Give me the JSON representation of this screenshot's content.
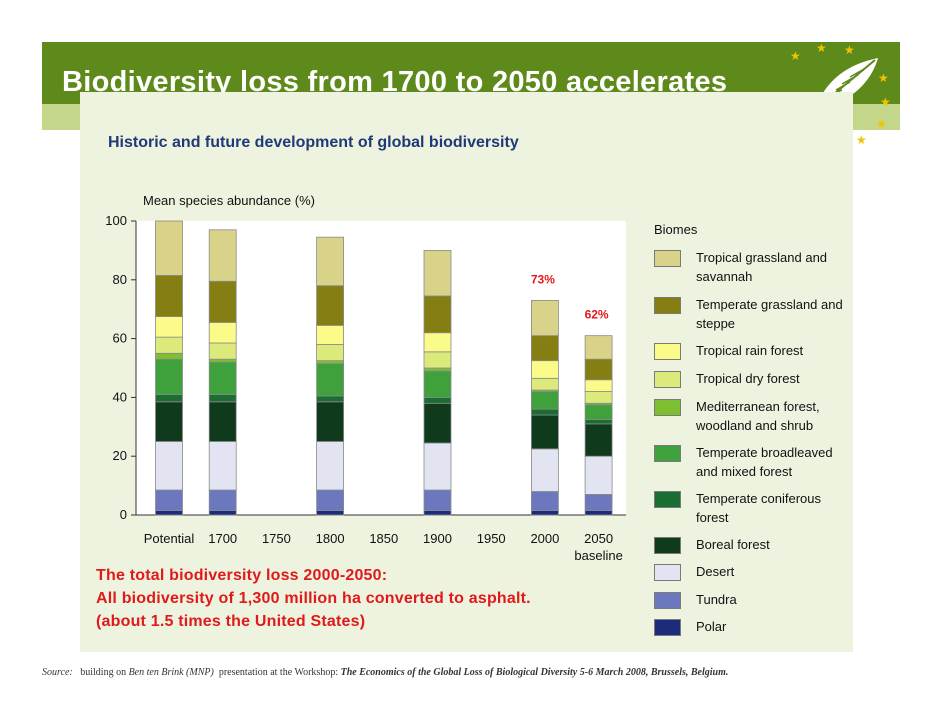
{
  "slide": {
    "title": "Biodiversity loss from 1700  to 2050 accelerates",
    "notes": [
      "The total biodiversity loss 2000-2050:",
      "All biodiversity of 1,300 million ha converted to asphalt.",
      "(about 1.5 times the United States)"
    ],
    "source": {
      "label": "Source:",
      "text1": "building on",
      "author": "Ben ten Brink (MNP)",
      "text2": "presentation at the Workshop:",
      "event": "The Economics of the Global Loss of Biological Diversity 5-6 March 2008, Brussels, Belgium."
    }
  },
  "chart_data": {
    "type": "bar",
    "stacked": true,
    "title": "Historic and future development of global biodiversity",
    "ylabel": "Mean species abundance (%)",
    "xlabel": "",
    "ylim": [
      0,
      100
    ],
    "yticks": [
      0,
      20,
      40,
      60,
      80,
      100
    ],
    "categories": [
      "Potential",
      "1700",
      "1750",
      "1800",
      "1850",
      "1900",
      "1950",
      "2000",
      "2050\nbaseline"
    ],
    "legend_title": "Biomes",
    "legend_position": "right",
    "series": [
      {
        "name": "Polar",
        "color": "#1c2c7a",
        "values": [
          1.5,
          1.5,
          null,
          1.5,
          null,
          1.5,
          null,
          1.5,
          1.5
        ]
      },
      {
        "name": "Tundra",
        "color": "#6c78bd",
        "values": [
          7,
          7,
          null,
          7,
          null,
          7,
          null,
          6.5,
          5.5
        ]
      },
      {
        "name": "Desert",
        "color": "#e2e4f1",
        "values": [
          16.5,
          16.5,
          null,
          16.5,
          null,
          16,
          null,
          14.5,
          13
        ]
      },
      {
        "name": "Boreal forest",
        "color": "#0f3a1c",
        "values": [
          13.5,
          13.5,
          null,
          13.5,
          null,
          13.5,
          null,
          11.5,
          11
        ]
      },
      {
        "name": "Temperate coniferous forest",
        "color": "#1a6e32",
        "values": [
          2.5,
          2.5,
          null,
          2,
          null,
          2,
          null,
          2,
          1.5
        ]
      },
      {
        "name": "Temperate broadleaved and mixed forest",
        "color": "#3ea13c",
        "values": [
          12,
          11,
          null,
          11,
          null,
          9,
          null,
          6,
          5
        ]
      },
      {
        "name": "Mediterranean forest, woodland and shrub",
        "color": "#7dbf31",
        "values": [
          2,
          1,
          null,
          1,
          null,
          1,
          null,
          0.5,
          0.5
        ]
      },
      {
        "name": "Tropical dry forest",
        "color": "#dcea7c",
        "values": [
          5.5,
          5.5,
          null,
          5.5,
          null,
          5.5,
          null,
          4,
          4
        ]
      },
      {
        "name": "Tropical rain forest",
        "color": "#fbfb8a",
        "values": [
          7,
          7,
          null,
          6.5,
          null,
          6.5,
          null,
          6,
          4
        ]
      },
      {
        "name": "Temperate grassland and steppe",
        "color": "#857e12",
        "values": [
          14,
          14,
          null,
          13.5,
          null,
          12.5,
          null,
          8.5,
          7
        ]
      },
      {
        "name": "Tropical grassland and savannah",
        "color": "#d9d289",
        "values": [
          18.5,
          17.5,
          null,
          16.5,
          null,
          15.5,
          null,
          12,
          8
        ]
      }
    ],
    "annotations": [
      {
        "category": "2000",
        "text": "73%",
        "color": "#e01a1a"
      },
      {
        "category": "2050\nbaseline",
        "text": "62%",
        "color": "#e01a1a"
      }
    ]
  }
}
